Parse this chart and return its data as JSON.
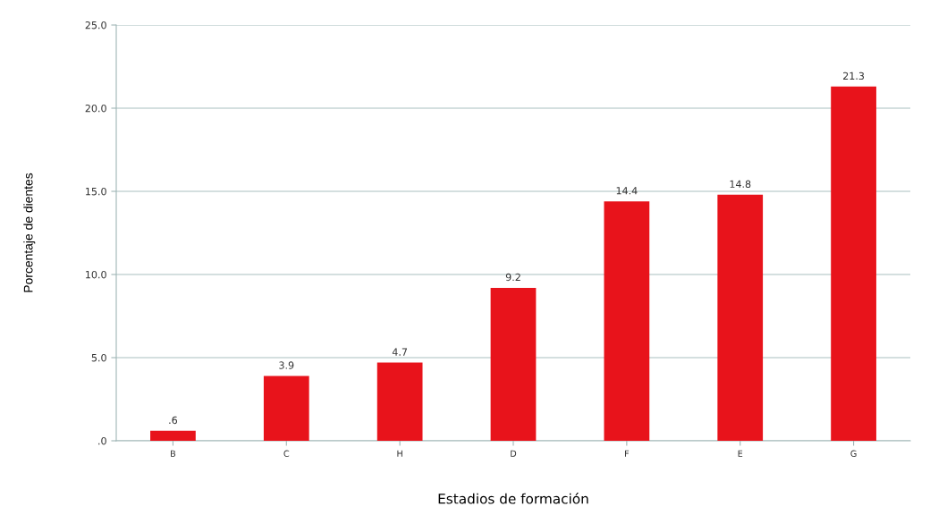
{
  "chart_data": {
    "type": "bar",
    "xlabel": "Estadios de formación",
    "ylabel": "Porcentaje de dientes",
    "categories": [
      "B",
      "C",
      "H",
      "D",
      "F",
      "E",
      "G"
    ],
    "values": [
      0.6,
      3.9,
      4.7,
      9.2,
      14.4,
      14.8,
      21.3
    ],
    "value_labels": [
      ".6",
      "3.9",
      "4.7",
      "9.2",
      "14.4",
      "14.8",
      "21.3"
    ],
    "color": "#e8131b",
    "ylim": [
      0,
      25
    ],
    "yticks": [
      {
        "value": 0,
        "label": ".0"
      },
      {
        "value": 5,
        "label": "5.0"
      },
      {
        "value": 10,
        "label": "10.0"
      },
      {
        "value": 15,
        "label": "15.0"
      },
      {
        "value": 20,
        "label": "20.0"
      },
      {
        "value": 25,
        "label": "25.0"
      }
    ],
    "grid": "y",
    "legend": false
  }
}
